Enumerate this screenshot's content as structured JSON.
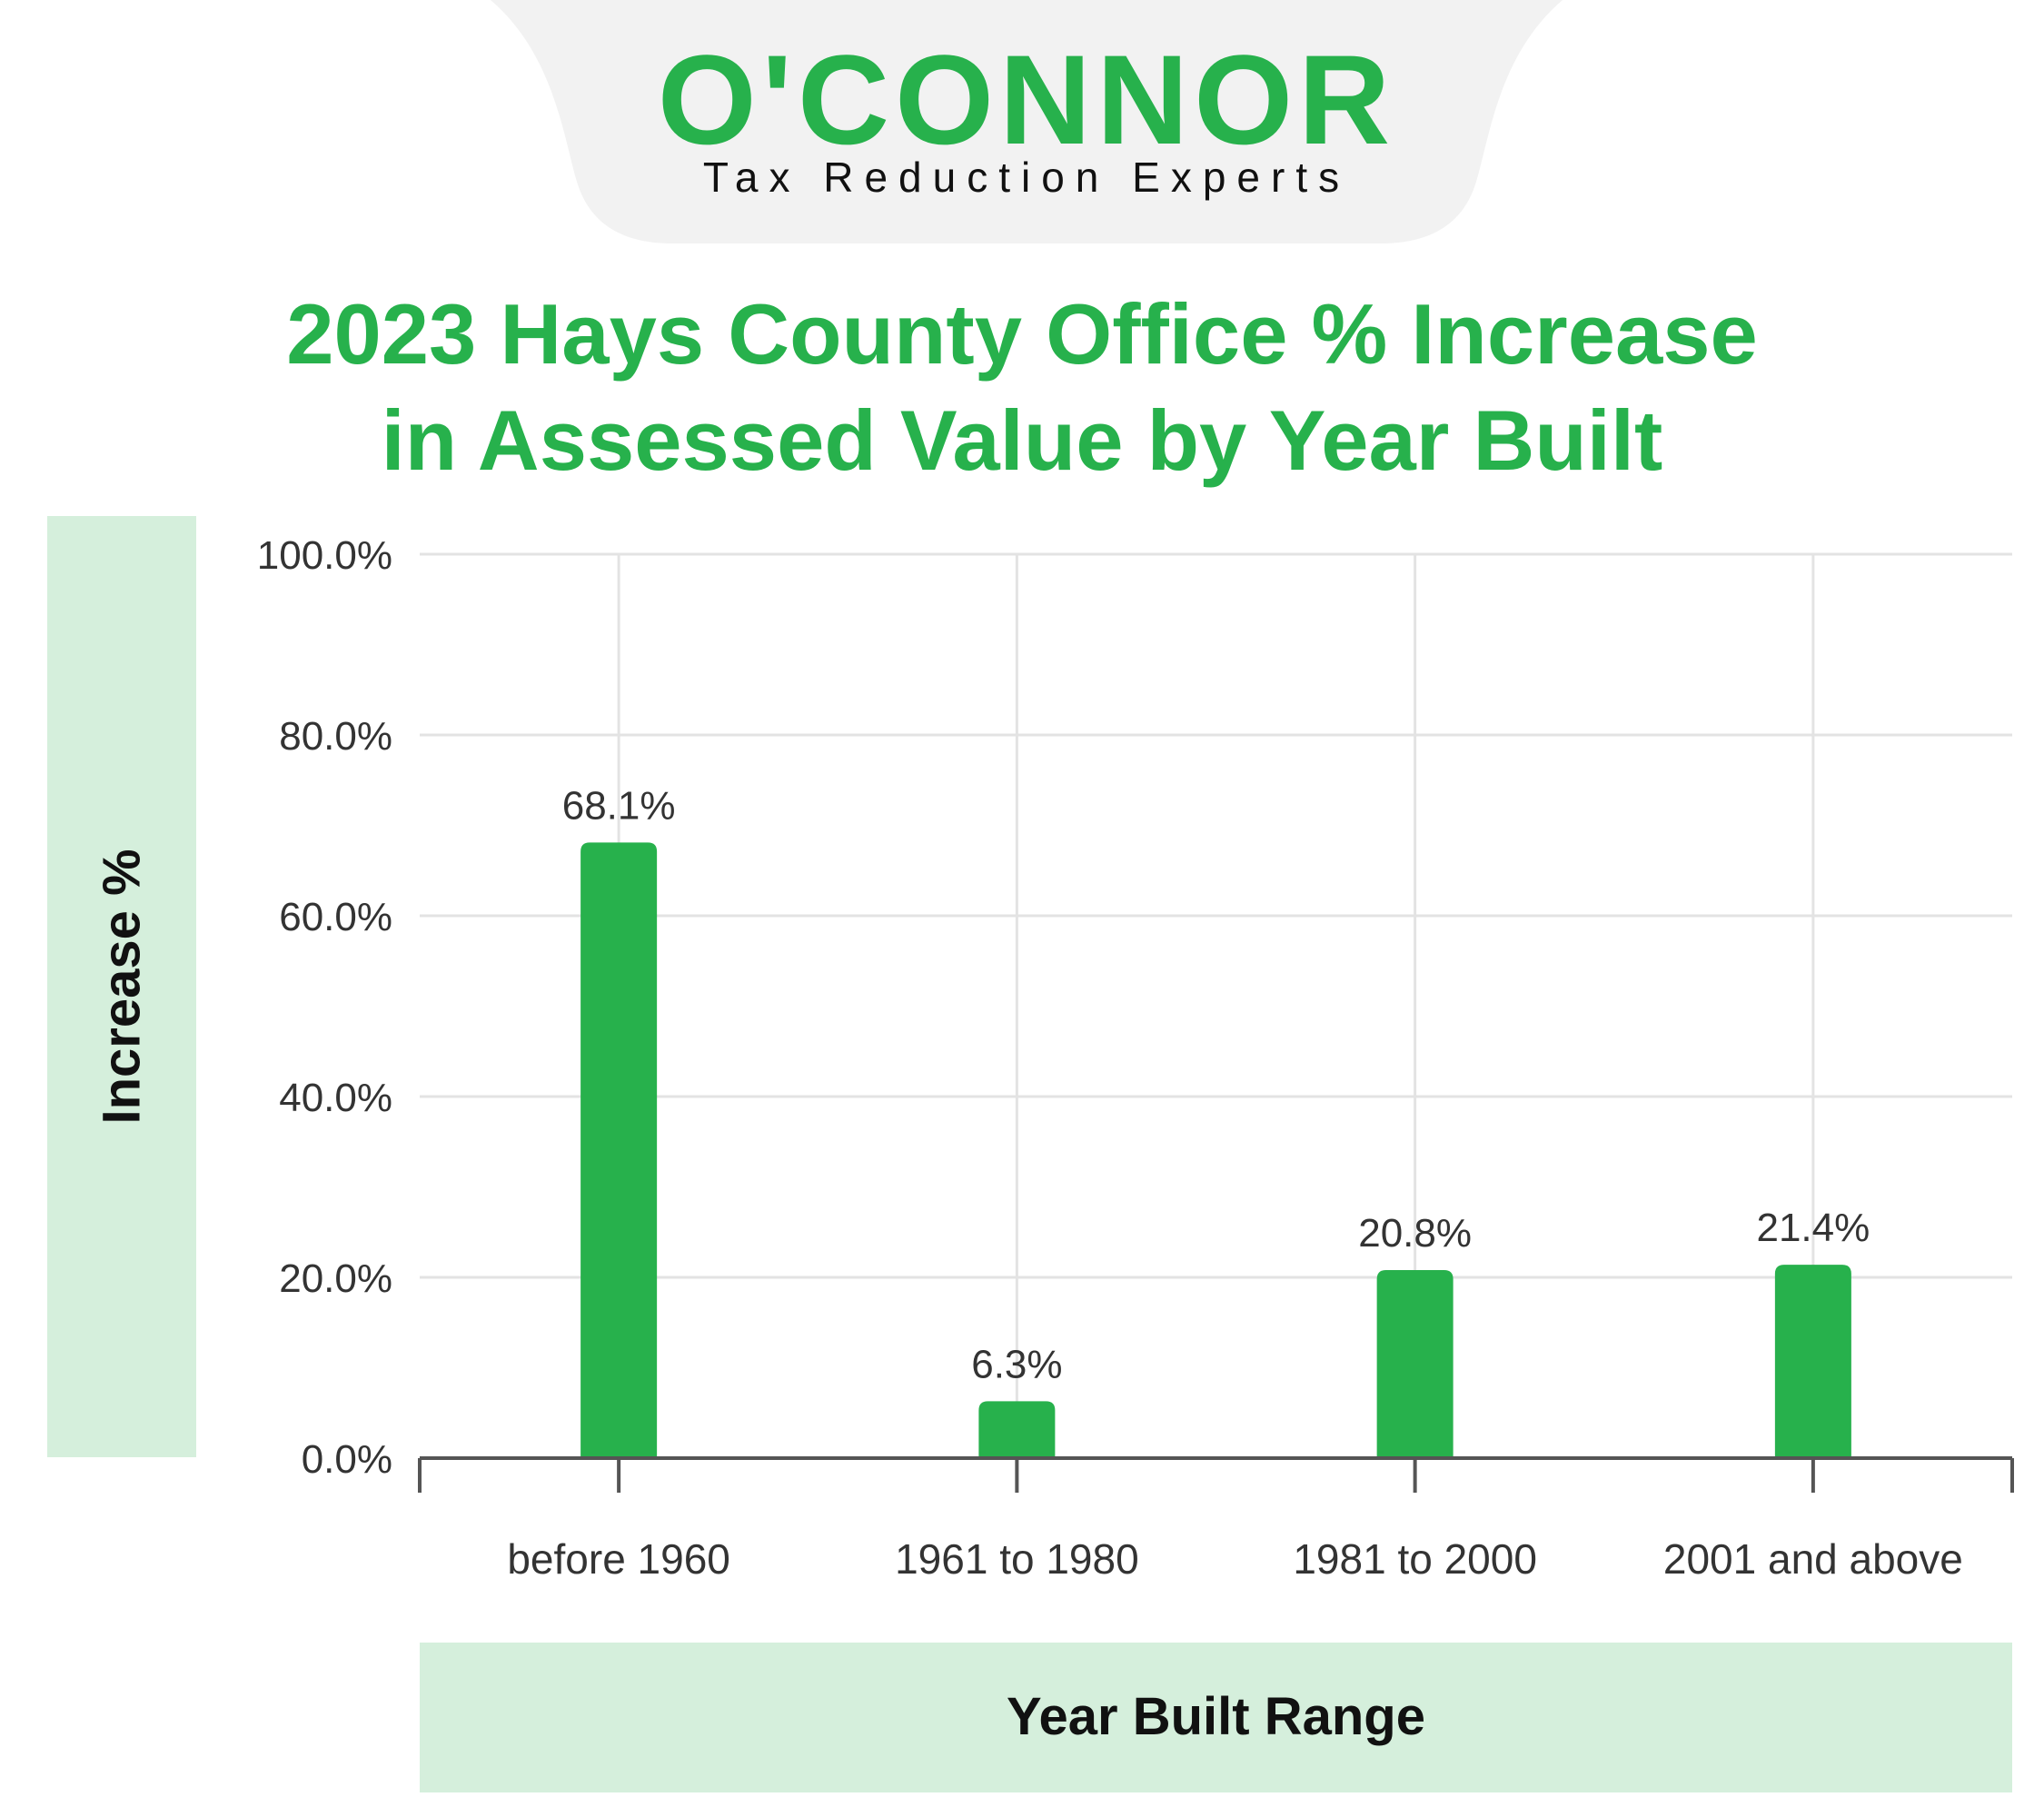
{
  "brand": {
    "name": "O'CONNOR",
    "tagline": "Tax Reduction Experts",
    "accent_color": "#27b14c",
    "panel_color": "#d5efdc",
    "header_bg_color": "#f2f2f2"
  },
  "chart_data": {
    "type": "bar",
    "title_lines": [
      "2023 Hays County Office % Increase",
      "in Assessed Value by Year Built"
    ],
    "xlabel": "Year Built Range",
    "ylabel": "Increase %",
    "categories": [
      "before 1960",
      "1961 to 1980",
      "1981 to 2000",
      "2001 and above"
    ],
    "values": [
      68.1,
      6.3,
      20.8,
      21.4
    ],
    "value_labels": [
      "68.1%",
      "6.3%",
      "20.8%",
      "21.4%"
    ],
    "ylim": [
      0,
      100
    ],
    "y_ticks": [
      0,
      20,
      40,
      60,
      80,
      100
    ],
    "y_tick_labels": [
      "0.0%",
      "20.0%",
      "40.0%",
      "60.0%",
      "80.0%",
      "100.0%"
    ],
    "grid": true,
    "bar_color": "#27b14c"
  }
}
